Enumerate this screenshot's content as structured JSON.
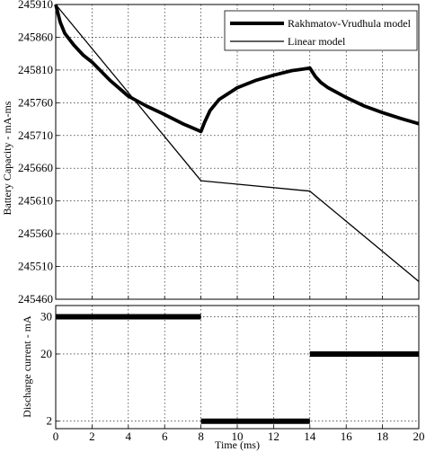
{
  "chart_data": [
    {
      "type": "line",
      "ylabel": "Battery Capacity - mA-ms",
      "xlim": [
        0,
        20
      ],
      "ylim": [
        245460,
        245910
      ],
      "yticks": [
        "245910",
        "245860",
        "245810",
        "245760",
        "245710",
        "245660",
        "245610",
        "245560",
        "245510",
        "245460"
      ],
      "grid": true,
      "legend_position": "top-right",
      "series": [
        {
          "name": "Rakhmatov-Vrudhula model",
          "x": [
            0,
            0.25,
            0.5,
            1,
            1.5,
            2,
            3,
            4,
            5,
            6,
            7,
            7.5,
            8,
            8.2,
            8.5,
            9,
            10,
            11,
            12,
            13,
            13.5,
            14,
            14.3,
            14.6,
            15,
            16,
            17,
            18,
            19,
            20
          ],
          "y": [
            245910,
            245883,
            245866,
            245848,
            245833,
            245822,
            245794,
            245770,
            245755,
            245742,
            245728,
            245722,
            245716,
            245730,
            245748,
            245765,
            245783,
            245794,
            245802,
            245809,
            245811,
            245813,
            245800,
            245791,
            245783,
            245768,
            245755,
            245745,
            245736,
            245728
          ]
        },
        {
          "name": "Linear model",
          "x": [
            0,
            8,
            14,
            20
          ],
          "y": [
            245910,
            245641,
            245625,
            245487
          ]
        }
      ]
    },
    {
      "type": "line",
      "xlabel": "Time (ms)",
      "ylabel": "Discharge current - mA",
      "xlim": [
        0,
        20
      ],
      "ylim": [
        0,
        33
      ],
      "xticks": [
        "0",
        "2",
        "4",
        "6",
        "8",
        "10",
        "12",
        "14",
        "16",
        "18",
        "20"
      ],
      "yticks": [
        "30",
        "20",
        "2"
      ],
      "grid": true,
      "series": [
        {
          "x": [
            0,
            8,
            8,
            14,
            14,
            20
          ],
          "y": [
            30,
            30,
            2,
            2,
            20,
            20
          ]
        }
      ]
    }
  ]
}
